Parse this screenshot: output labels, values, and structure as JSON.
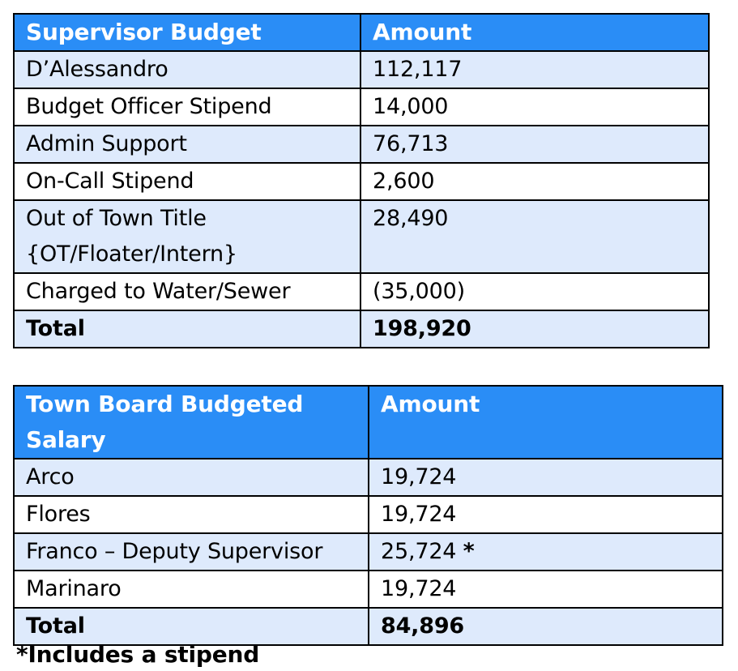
{
  "supervisor_table": {
    "header": {
      "label": "Supervisor Budget",
      "amount": "Amount"
    },
    "rows": [
      {
        "label": "D’Alessandro",
        "amount": "112,117"
      },
      {
        "label": "Budget Officer Stipend",
        "amount": "14,000"
      },
      {
        "label": "Admin Support",
        "amount": "76,713"
      },
      {
        "label": "On-Call Stipend",
        "amount": "2,600"
      },
      {
        "label_line1": "Out of Town Title",
        "label_line2": "{OT/Floater/Intern}",
        "amount": "28,490"
      },
      {
        "label": "Charged to Water/Sewer",
        "amount": "(35,000)"
      }
    ],
    "total": {
      "label": "Total",
      "amount": "198,920"
    }
  },
  "town_board_table": {
    "header": {
      "label_line1": "Town Board Budgeted",
      "label_line2": "Salary",
      "amount": "Amount"
    },
    "rows": [
      {
        "label": "Arco",
        "amount": "19,724"
      },
      {
        "label": "Flores",
        "amount": "19,724"
      },
      {
        "label": "Franco – Deputy Supervisor",
        "amount": "25,724",
        "note": "*"
      },
      {
        "label": "Marinaro",
        "amount": "19,724"
      }
    ],
    "total": {
      "label": "Total",
      "amount": "84,896"
    }
  },
  "footnote": "*Includes a stipend",
  "colors": {
    "header_bg": "#2a8df6",
    "row_shade": "#deeafc",
    "header_text": "#ffffff"
  }
}
